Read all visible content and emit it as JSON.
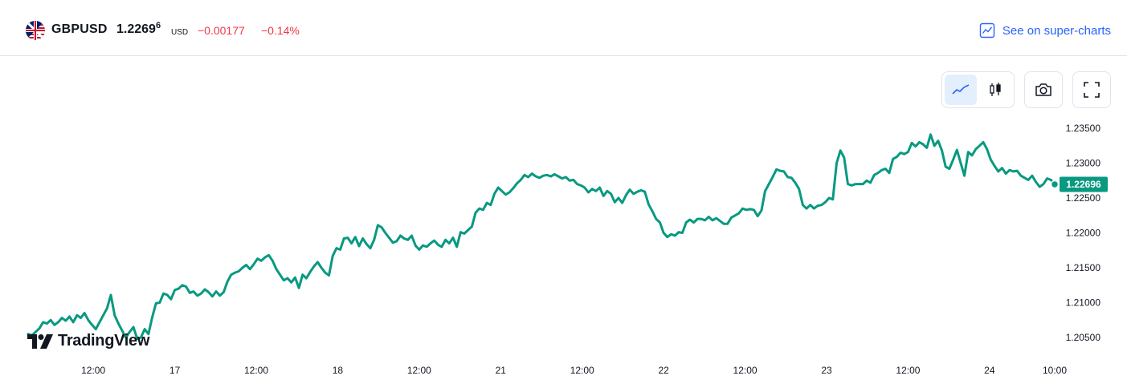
{
  "header": {
    "symbol": "GBPUSD",
    "price_main": "1.2269",
    "price_sup": "6",
    "currency": "USD",
    "change": "−0.00177",
    "change_pct": "−0.14%",
    "flag_icon": "uk-us-flag-icon",
    "super_link": "See on super-charts"
  },
  "toolbar": {
    "line_icon": "line-chart-icon",
    "candle_icon": "candlestick-icon",
    "camera_icon": "camera-icon",
    "fullscreen_icon": "fullscreen-icon"
  },
  "brand": {
    "logo_text": "TradingView"
  },
  "colors": {
    "line": "#089981",
    "negative": "#f23645",
    "accent": "#2962ff"
  },
  "chart_data": {
    "type": "line",
    "title": "",
    "xlabel": "",
    "ylabel": "",
    "ylim": [
      1.2025,
      1.2365
    ],
    "y_ticks": [
      "1.23500",
      "1.23000",
      "1.22500",
      "1.22000",
      "1.21500",
      "1.21000",
      "1.20500"
    ],
    "y_tick_values": [
      1.235,
      1.23,
      1.225,
      1.22,
      1.215,
      1.21,
      1.205
    ],
    "x_ticks": [
      "12:00",
      "17",
      "12:00",
      "18",
      "12:00",
      "21",
      "12:00",
      "22",
      "12:00",
      "23",
      "12:00",
      "24",
      "10:00"
    ],
    "x_range": [
      0,
      63
    ],
    "x_tick_positions": [
      4,
      9,
      14,
      19,
      24,
      29,
      34,
      39,
      44,
      49,
      54,
      59,
      63
    ],
    "last_price_label": "1.22696",
    "last_value": 1.22696,
    "series": [
      {
        "values": [
          1.2055,
          1.2053,
          1.2058,
          1.2063,
          1.2072,
          1.207,
          1.2075,
          1.2068,
          1.2072,
          1.2078,
          1.2074,
          1.208,
          1.2072,
          1.2082,
          1.2078,
          1.2085,
          1.2075,
          1.2068,
          1.2062,
          1.2072,
          1.2082,
          1.2092,
          1.2111,
          1.2082,
          1.207,
          1.206,
          1.205,
          1.2058,
          1.2065,
          1.2048,
          1.205,
          1.2062,
          1.2055,
          1.2079,
          1.2099,
          1.21,
          1.2113,
          1.2111,
          1.2105,
          1.2118,
          1.212,
          1.2125,
          1.2123,
          1.2114,
          1.2116,
          1.211,
          1.2113,
          1.2119,
          1.2115,
          1.2109,
          1.2116,
          1.211,
          1.2115,
          1.213,
          1.214,
          1.2143,
          1.2145,
          1.215,
          1.2154,
          1.2148,
          1.2155,
          1.2163,
          1.216,
          1.2165,
          1.2168,
          1.216,
          1.2148,
          1.214,
          1.2132,
          1.2135,
          1.2129,
          1.2136,
          1.2121,
          1.214,
          1.2135,
          1.2144,
          1.2152,
          1.2158,
          1.215,
          1.2143,
          1.2139,
          1.2167,
          1.2178,
          1.2176,
          1.2192,
          1.2193,
          1.2185,
          1.2194,
          1.2181,
          1.2192,
          1.2184,
          1.2178,
          1.219,
          1.2211,
          1.2208,
          1.22,
          1.2193,
          1.2186,
          1.2188,
          1.2196,
          1.2192,
          1.219,
          1.2196,
          1.2182,
          1.2176,
          1.2182,
          1.218,
          1.2185,
          1.2189,
          1.2183,
          1.218,
          1.219,
          1.2185,
          1.2193,
          1.218,
          1.2201,
          1.2199,
          1.2204,
          1.2209,
          1.2229,
          1.2235,
          1.2233,
          1.2243,
          1.224,
          1.2256,
          1.2265,
          1.226,
          1.2255,
          1.2258,
          1.2264,
          1.2271,
          1.2276,
          1.2283,
          1.228,
          1.2285,
          1.2281,
          1.2279,
          1.2282,
          1.2283,
          1.2281,
          1.2284,
          1.2281,
          1.2278,
          1.228,
          1.2275,
          1.2276,
          1.227,
          1.2268,
          1.2265,
          1.2258,
          1.2263,
          1.226,
          1.2265,
          1.2253,
          1.226,
          1.2256,
          1.2244,
          1.225,
          1.2243,
          1.2254,
          1.2262,
          1.2256,
          1.2259,
          1.2261,
          1.2259,
          1.2241,
          1.2231,
          1.222,
          1.2215,
          1.22,
          1.2194,
          1.2198,
          1.2196,
          1.2201,
          1.22,
          1.2215,
          1.2219,
          1.2215,
          1.222,
          1.222,
          1.2218,
          1.2223,
          1.2218,
          1.2221,
          1.2217,
          1.2213,
          1.2213,
          1.2222,
          1.2225,
          1.2228,
          1.2235,
          1.2233,
          1.2234,
          1.2233,
          1.2224,
          1.2232,
          1.226,
          1.227,
          1.228,
          1.2291,
          1.2289,
          1.2288,
          1.228,
          1.2279,
          1.2272,
          1.2263,
          1.224,
          1.2235,
          1.224,
          1.2235,
          1.2239,
          1.224,
          1.2244,
          1.225,
          1.2248,
          1.23,
          1.2318,
          1.2308,
          1.227,
          1.2268,
          1.227,
          1.227,
          1.227,
          1.2275,
          1.2272,
          1.2283,
          1.2286,
          1.229,
          1.2292,
          1.2286,
          1.2306,
          1.2309,
          1.2315,
          1.2313,
          1.2316,
          1.2329,
          1.2324,
          1.233,
          1.2327,
          1.2322,
          1.2341,
          1.2325,
          1.2332,
          1.2318,
          1.2295,
          1.2292,
          1.2305,
          1.2319,
          1.23,
          1.2282,
          1.2316,
          1.2311,
          1.232,
          1.2325,
          1.233,
          1.232,
          1.2305,
          1.2296,
          1.2288,
          1.2293,
          1.2285,
          1.229,
          1.2288,
          1.2289,
          1.2282,
          1.2279,
          1.2276,
          1.2282,
          1.2273,
          1.2266,
          1.227,
          1.2278,
          1.2276,
          1.227
        ]
      }
    ]
  }
}
